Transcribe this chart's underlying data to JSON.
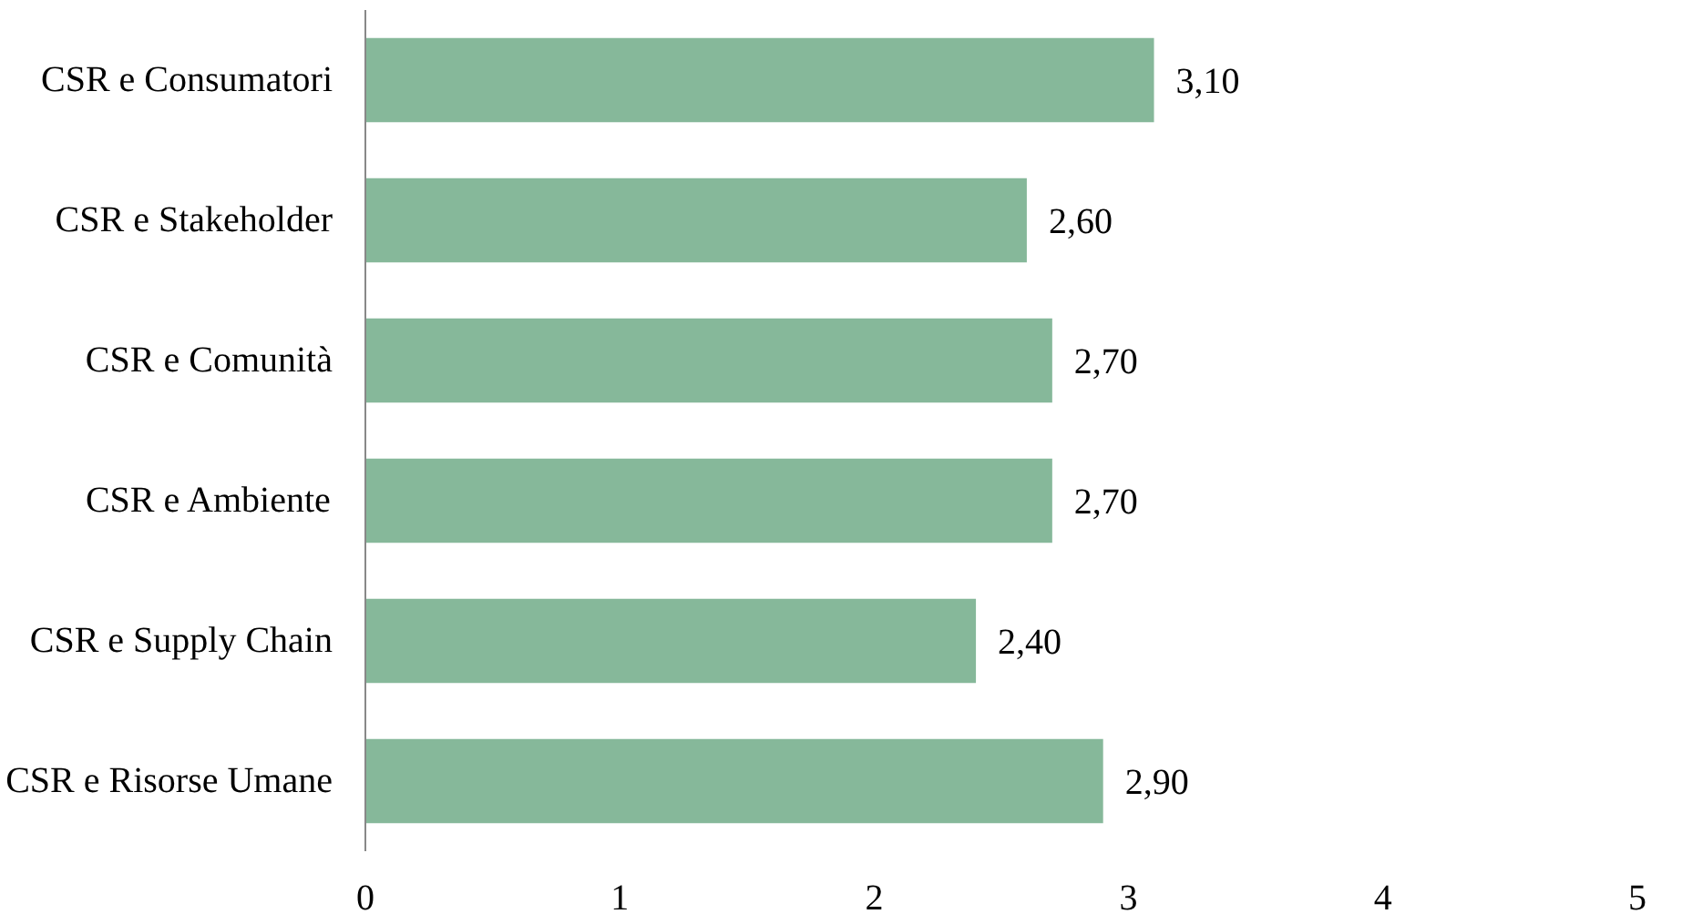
{
  "chart_data": {
    "type": "bar",
    "orientation": "horizontal",
    "categories": [
      "CSR e Consumatori",
      "CSR e Stakeholder",
      "CSR e Comunità",
      "CSR e Ambiente",
      "CSR e Supply Chain",
      "CSR e Risorse Umane"
    ],
    "values": [
      3.1,
      2.6,
      2.7,
      2.7,
      2.4,
      2.9
    ],
    "value_labels": [
      "3,10",
      "2,60",
      "2,70",
      "2,70",
      "2,40",
      "2,90"
    ],
    "color": "#86b89a",
    "xlim": [
      0,
      5
    ],
    "xticks": [
      0,
      1,
      2,
      3,
      4,
      5
    ],
    "grid": false
  }
}
